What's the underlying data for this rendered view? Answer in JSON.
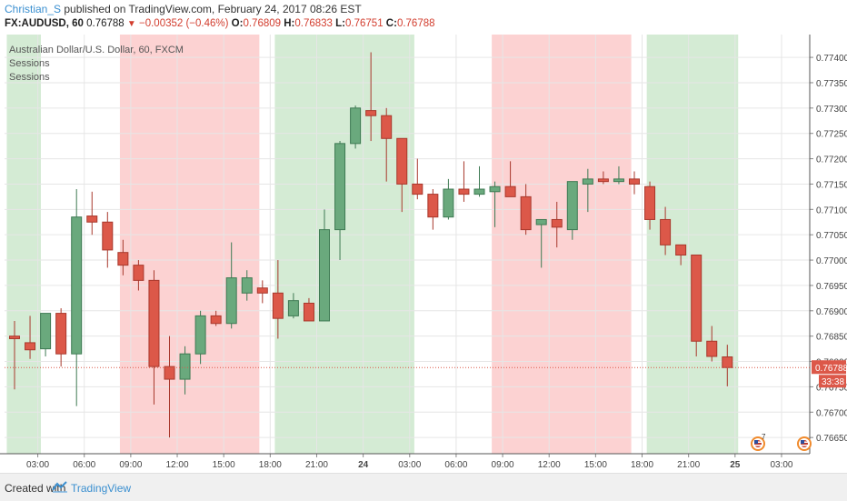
{
  "header": {
    "author": "Christian_S",
    "published": "published on TradingView.com, February 24, 2017 08:26 EST",
    "symbol": "FX:AUDUSD, 60",
    "last": "0.76788",
    "arrow": "▼",
    "change": "−0.00352 (−0.46%)",
    "o_label": "O:",
    "o": "0.76809",
    "h_label": "H:",
    "h": "0.76833",
    "l_label": "L:",
    "l": "0.76751",
    "c_label": "C:",
    "c": "0.76788"
  },
  "legend": {
    "title": "Australian Dollar/U.S. Dollar, 60, FXCM",
    "study1": "Sessions",
    "study2": "Sessions"
  },
  "footer": {
    "created": "Created with",
    "brand": "TradingView"
  },
  "badges": [
    {
      "num": "7"
    },
    {
      "num": ""
    }
  ],
  "colors": {
    "up": "#6aa97d",
    "up_edge": "#3e7a53",
    "down": "#dc5849",
    "down_edge": "#a8382c",
    "session_green": "#cde8cd",
    "session_red": "#fbcaca",
    "last_price_bg": "#dc5849"
  },
  "chart_data": {
    "type": "candlestick",
    "title": "Australian Dollar/U.S. Dollar, 60, FXCM",
    "price_axis": {
      "range": [
        0.76618,
        0.77445
      ],
      "ticks": [
        "0.77400",
        "0.77350",
        "0.77300",
        "0.77250",
        "0.77200",
        "0.77150",
        "0.77100",
        "0.77050",
        "0.77000",
        "0.76950",
        "0.76900",
        "0.76850",
        "0.76800",
        "0.76750",
        "0.76700",
        "0.76650"
      ],
      "last_price": "0.76788",
      "countdown": "33:38"
    },
    "time_axis": {
      "labels": [
        "03:00",
        "06:00",
        "09:00",
        "12:00",
        "15:00",
        "18:00",
        "21:00",
        "24",
        "03:00",
        "06:00",
        "09:00",
        "12:00",
        "15:00",
        "18:00",
        "21:00",
        "25",
        "03:00"
      ],
      "bold": [
        false,
        false,
        false,
        false,
        false,
        false,
        false,
        true,
        false,
        false,
        false,
        false,
        false,
        false,
        false,
        true,
        false
      ]
    },
    "sessions": [
      {
        "color": "green",
        "start": -0.5,
        "end": 1.7
      },
      {
        "color": "red",
        "start": 6.8,
        "end": 15.8
      },
      {
        "color": "green",
        "start": 16.8,
        "end": 25.8
      },
      {
        "color": "red",
        "start": 30.8,
        "end": 39.8
      },
      {
        "color": "green",
        "start": 40.8,
        "end": 46.7
      }
    ],
    "candles": [
      {
        "o": 0.7685,
        "h": 0.7688,
        "l": 0.76745,
        "c": 0.76845
      },
      {
        "o": 0.76837,
        "h": 0.7689,
        "l": 0.76805,
        "c": 0.76823
      },
      {
        "o": 0.76825,
        "h": 0.76895,
        "l": 0.7681,
        "c": 0.76895
      },
      {
        "o": 0.76895,
        "h": 0.76905,
        "l": 0.7679,
        "c": 0.76815
      },
      {
        "o": 0.76815,
        "h": 0.7714,
        "l": 0.76712,
        "c": 0.77085
      },
      {
        "o": 0.77087,
        "h": 0.77135,
        "l": 0.7705,
        "c": 0.77075
      },
      {
        "o": 0.77075,
        "h": 0.77095,
        "l": 0.76985,
        "c": 0.7702
      },
      {
        "o": 0.77015,
        "h": 0.7704,
        "l": 0.7697,
        "c": 0.7699
      },
      {
        "o": 0.7699,
        "h": 0.77,
        "l": 0.7694,
        "c": 0.7696
      },
      {
        "o": 0.7696,
        "h": 0.7698,
        "l": 0.76715,
        "c": 0.7679
      },
      {
        "o": 0.7679,
        "h": 0.7685,
        "l": 0.7665,
        "c": 0.76765
      },
      {
        "o": 0.76765,
        "h": 0.7683,
        "l": 0.76735,
        "c": 0.76815
      },
      {
        "o": 0.76815,
        "h": 0.769,
        "l": 0.76795,
        "c": 0.7689
      },
      {
        "o": 0.7689,
        "h": 0.769,
        "l": 0.7687,
        "c": 0.76875
      },
      {
        "o": 0.76875,
        "h": 0.77035,
        "l": 0.76865,
        "c": 0.76965
      },
      {
        "o": 0.76935,
        "h": 0.7698,
        "l": 0.7692,
        "c": 0.76965
      },
      {
        "o": 0.76945,
        "h": 0.7696,
        "l": 0.76915,
        "c": 0.76935
      },
      {
        "o": 0.76935,
        "h": 0.77,
        "l": 0.76845,
        "c": 0.76885
      },
      {
        "o": 0.7689,
        "h": 0.76935,
        "l": 0.76885,
        "c": 0.7692
      },
      {
        "o": 0.76915,
        "h": 0.76925,
        "l": 0.7688,
        "c": 0.7688
      },
      {
        "o": 0.7688,
        "h": 0.771,
        "l": 0.7688,
        "c": 0.7706
      },
      {
        "o": 0.7706,
        "h": 0.77235,
        "l": 0.77,
        "c": 0.7723
      },
      {
        "o": 0.7723,
        "h": 0.77305,
        "l": 0.7722,
        "c": 0.773
      },
      {
        "o": 0.77295,
        "h": 0.7741,
        "l": 0.77235,
        "c": 0.77285
      },
      {
        "o": 0.77285,
        "h": 0.773,
        "l": 0.77155,
        "c": 0.7724
      },
      {
        "o": 0.7724,
        "h": 0.7724,
        "l": 0.77095,
        "c": 0.7715
      },
      {
        "o": 0.7715,
        "h": 0.772,
        "l": 0.7712,
        "c": 0.7713
      },
      {
        "o": 0.7713,
        "h": 0.7714,
        "l": 0.7706,
        "c": 0.77085
      },
      {
        "o": 0.77085,
        "h": 0.7716,
        "l": 0.7708,
        "c": 0.7714
      },
      {
        "o": 0.7714,
        "h": 0.77195,
        "l": 0.77115,
        "c": 0.7713
      },
      {
        "o": 0.7713,
        "h": 0.77185,
        "l": 0.77125,
        "c": 0.7714
      },
      {
        "o": 0.77135,
        "h": 0.77155,
        "l": 0.77065,
        "c": 0.77145
      },
      {
        "o": 0.77145,
        "h": 0.77195,
        "l": 0.77125,
        "c": 0.77125
      },
      {
        "o": 0.77125,
        "h": 0.7715,
        "l": 0.7705,
        "c": 0.7706
      },
      {
        "o": 0.7707,
        "h": 0.7708,
        "l": 0.76985,
        "c": 0.7708
      },
      {
        "o": 0.7708,
        "h": 0.77115,
        "l": 0.77025,
        "c": 0.77065
      },
      {
        "o": 0.7706,
        "h": 0.77155,
        "l": 0.7704,
        "c": 0.77155
      },
      {
        "o": 0.7715,
        "h": 0.7718,
        "l": 0.77095,
        "c": 0.7716
      },
      {
        "o": 0.7716,
        "h": 0.77175,
        "l": 0.7715,
        "c": 0.77155
      },
      {
        "o": 0.77155,
        "h": 0.77185,
        "l": 0.7715,
        "c": 0.7716
      },
      {
        "o": 0.7716,
        "h": 0.77175,
        "l": 0.7713,
        "c": 0.7715
      },
      {
        "o": 0.77145,
        "h": 0.77155,
        "l": 0.7706,
        "c": 0.7708
      },
      {
        "o": 0.7708,
        "h": 0.77105,
        "l": 0.7701,
        "c": 0.7703
      },
      {
        "o": 0.7703,
        "h": 0.77025,
        "l": 0.7699,
        "c": 0.7701
      },
      {
        "o": 0.7701,
        "h": 0.7701,
        "l": 0.7681,
        "c": 0.7684
      },
      {
        "o": 0.7684,
        "h": 0.7687,
        "l": 0.768,
        "c": 0.7681
      },
      {
        "o": 0.76809,
        "h": 0.76833,
        "l": 0.76751,
        "c": 0.76788
      }
    ]
  }
}
